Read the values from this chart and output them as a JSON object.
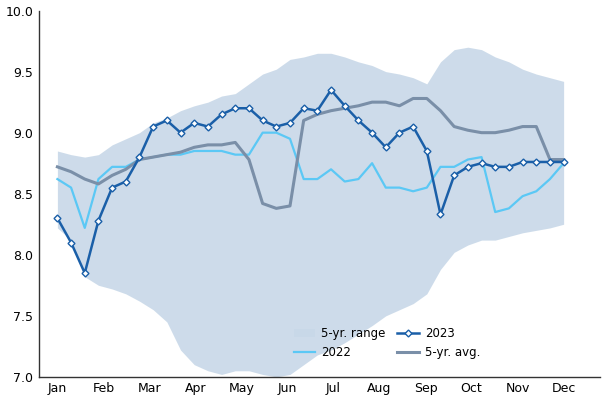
{
  "ylim": [
    7.0,
    10.0
  ],
  "yticks": [
    7.0,
    7.5,
    8.0,
    8.5,
    9.0,
    9.5,
    10.0
  ],
  "months": [
    "Jan",
    "Feb",
    "Mar",
    "Apr",
    "May",
    "Jun",
    "Jul",
    "Aug",
    "Sep",
    "Oct",
    "Nov",
    "Dec"
  ],
  "color_2023": "#1a5fa8",
  "color_2022": "#5bc8f5",
  "color_avg": "#7a8fa8",
  "color_range_fill": "#c8d8e8",
  "line_2023": [
    8.3,
    8.1,
    7.85,
    8.28,
    8.55,
    8.6,
    8.8,
    9.05,
    9.1,
    9.0,
    9.08,
    9.05,
    9.15,
    9.2,
    9.2,
    9.1,
    9.05,
    9.08,
    9.2,
    9.18,
    9.35,
    9.22,
    9.1,
    9.0,
    8.88,
    9.0,
    9.05,
    8.85,
    8.33,
    8.65,
    8.72,
    8.75,
    8.72,
    8.72,
    8.76,
    8.76,
    8.76,
    8.76
  ],
  "line_2022": [
    8.62,
    8.55,
    8.22,
    8.62,
    8.72,
    8.72,
    8.78,
    8.8,
    8.82,
    8.82,
    8.85,
    8.85,
    8.85,
    8.82,
    8.82,
    9.0,
    9.0,
    8.95,
    8.62,
    8.62,
    8.7,
    8.6,
    8.62,
    8.75,
    8.55,
    8.55,
    8.52,
    8.55,
    8.72,
    8.72,
    8.78,
    8.8,
    8.35,
    8.38,
    8.48,
    8.52,
    8.62,
    8.75
  ],
  "line_avg": [
    8.72,
    8.68,
    8.62,
    8.58,
    8.65,
    8.7,
    8.78,
    8.8,
    8.82,
    8.84,
    8.88,
    8.9,
    8.9,
    8.92,
    8.78,
    8.42,
    8.38,
    8.4,
    9.1,
    9.15,
    9.18,
    9.2,
    9.22,
    9.25,
    9.25,
    9.22,
    9.28,
    9.28,
    9.18,
    9.05,
    9.02,
    9.0,
    9.0,
    9.02,
    9.05,
    9.05,
    8.78,
    8.78
  ],
  "range_upper": [
    8.85,
    8.82,
    8.8,
    8.82,
    8.9,
    8.95,
    9.0,
    9.08,
    9.12,
    9.18,
    9.22,
    9.25,
    9.3,
    9.32,
    9.4,
    9.48,
    9.52,
    9.6,
    9.62,
    9.65,
    9.65,
    9.62,
    9.58,
    9.55,
    9.5,
    9.48,
    9.45,
    9.4,
    9.58,
    9.68,
    9.7,
    9.68,
    9.62,
    9.58,
    9.52,
    9.48,
    9.45,
    9.42
  ],
  "range_lower": [
    8.22,
    8.12,
    7.82,
    7.75,
    7.72,
    7.68,
    7.62,
    7.55,
    7.45,
    7.22,
    7.1,
    7.05,
    7.02,
    7.05,
    7.05,
    7.02,
    7.0,
    7.02,
    7.1,
    7.18,
    7.22,
    7.28,
    7.35,
    7.42,
    7.5,
    7.55,
    7.6,
    7.68,
    7.88,
    8.02,
    8.08,
    8.12,
    8.12,
    8.15,
    8.18,
    8.2,
    8.22,
    8.25
  ],
  "n_points": 38,
  "marker_2023": "D",
  "marker_size": 3.5
}
